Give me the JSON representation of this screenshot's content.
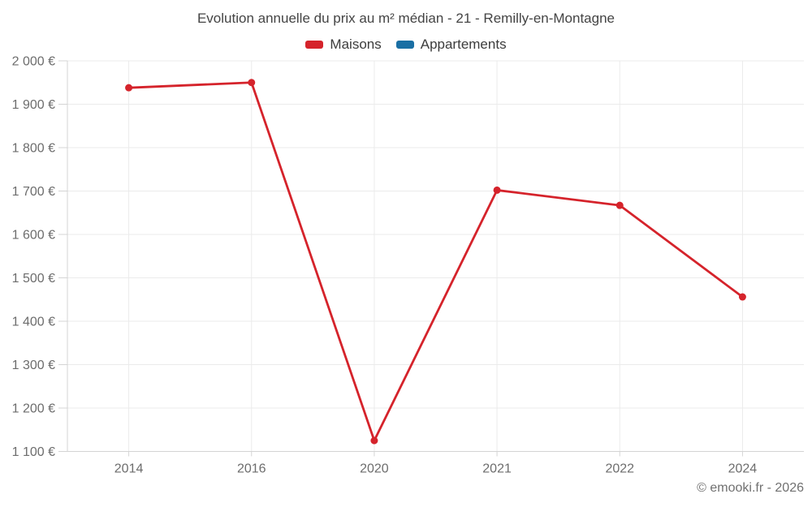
{
  "page": {
    "background": "#ffffff",
    "footer": "© emooki.fr - 2026"
  },
  "chart_data": {
    "type": "line",
    "title": "Evolution annuelle du prix au m² médian - 21 - Remilly-en-Montagne",
    "categories": [
      "2014",
      "2016",
      "2020",
      "2021",
      "2022",
      "2024"
    ],
    "series": [
      {
        "name": "Maisons",
        "color": "#d5232b",
        "values": [
          1938,
          1950,
          1125,
          1702,
          1667,
          1456
        ]
      },
      {
        "name": "Appartements",
        "color": "#1a6fa4",
        "values": []
      }
    ],
    "ylim": [
      1100,
      2000
    ],
    "yticks": {
      "values": [
        1100,
        1200,
        1300,
        1400,
        1500,
        1600,
        1700,
        1800,
        1900,
        2000
      ],
      "labels": [
        "1 100 €",
        "1 200 €",
        "1 300 €",
        "1 400 €",
        "1 500 €",
        "1 600 €",
        "1 700 €",
        "1 800 €",
        "1 900 €",
        "2 000 €"
      ]
    },
    "grid": true,
    "legend_position": "top",
    "styles": {
      "grid_color": "#ebebeb",
      "axis_color": "#d4d4d4",
      "tick_text_color": "#6d6d6d",
      "title_color": "#444444",
      "legend_text_color": "#3c3c3c",
      "footer_color": "#707070"
    }
  }
}
